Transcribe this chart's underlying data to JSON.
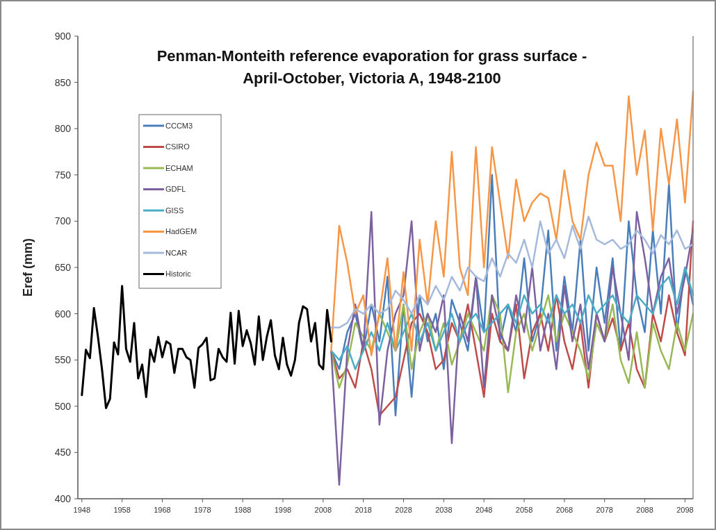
{
  "chart_data": {
    "type": "line",
    "title": "Penman-Monteith reference evaporation for grass surface -\nApril-October, Victoria A, 1948-2100",
    "ylabel": "Eref (mm)",
    "xlim": [
      1947,
      2100
    ],
    "xticks": [
      1948,
      1958,
      1968,
      1978,
      1988,
      1998,
      2008,
      2018,
      2028,
      2038,
      2048,
      2058,
      2068,
      2078,
      2088,
      2098
    ],
    "ylim": [
      400,
      900
    ],
    "yticks": [
      400,
      450,
      500,
      550,
      600,
      650,
      700,
      750,
      800,
      850,
      900
    ],
    "grid": false,
    "legend": "top left",
    "marker": "none",
    "line_style": "solid",
    "series": [
      {
        "name": "CCCM3",
        "color": "#4a7ebb",
        "x": [
          2010,
          2012,
          2014,
          2016,
          2018,
          2020,
          2022,
          2024,
          2026,
          2028,
          2030,
          2032,
          2034,
          2036,
          2038,
          2040,
          2042,
          2044,
          2046,
          2048,
          2050,
          2052,
          2054,
          2056,
          2058,
          2060,
          2062,
          2064,
          2066,
          2068,
          2070,
          2072,
          2074,
          2076,
          2078,
          2080,
          2082,
          2084,
          2086,
          2088,
          2090,
          2092,
          2094,
          2096,
          2098,
          2100
        ],
        "values": [
          560,
          540,
          580,
          600,
          560,
          610,
          570,
          640,
          490,
          610,
          510,
          620,
          570,
          600,
          540,
          615,
          590,
          560,
          640,
          580,
          750,
          570,
          610,
          580,
          660,
          570,
          600,
          690,
          560,
          640,
          580,
          680,
          560,
          650,
          590,
          660,
          560,
          700,
          620,
          580,
          690,
          600,
          740,
          580,
          650,
          610
        ]
      },
      {
        "name": "CSIRO",
        "color": "#be4b48",
        "x": [
          2010,
          2012,
          2014,
          2016,
          2018,
          2020,
          2022,
          2024,
          2026,
          2028,
          2030,
          2032,
          2034,
          2036,
          2038,
          2040,
          2042,
          2044,
          2046,
          2048,
          2050,
          2052,
          2054,
          2056,
          2058,
          2060,
          2062,
          2064,
          2066,
          2068,
          2070,
          2072,
          2074,
          2076,
          2078,
          2080,
          2082,
          2084,
          2086,
          2088,
          2090,
          2092,
          2094,
          2096,
          2098,
          2100
        ],
        "values": [
          560,
          530,
          540,
          520,
          570,
          540,
          490,
          500,
          510,
          550,
          590,
          600,
          580,
          540,
          550,
          590,
          570,
          610,
          560,
          510,
          600,
          570,
          560,
          610,
          530,
          580,
          600,
          560,
          620,
          570,
          540,
          590,
          520,
          600,
          570,
          595,
          560,
          590,
          540,
          520,
          600,
          570,
          620,
          580,
          555,
          700
        ]
      },
      {
        "name": "ECHAM",
        "color": "#98b954",
        "x": [
          2010,
          2012,
          2014,
          2016,
          2018,
          2020,
          2022,
          2024,
          2026,
          2028,
          2030,
          2032,
          2034,
          2036,
          2038,
          2040,
          2042,
          2044,
          2046,
          2048,
          2050,
          2052,
          2054,
          2056,
          2058,
          2060,
          2062,
          2064,
          2066,
          2068,
          2070,
          2072,
          2074,
          2076,
          2078,
          2080,
          2082,
          2084,
          2086,
          2088,
          2090,
          2092,
          2094,
          2096,
          2098,
          2100
        ],
        "values": [
          560,
          520,
          545,
          590,
          575,
          560,
          600,
          580,
          560,
          610,
          540,
          580,
          600,
          560,
          590,
          545,
          570,
          600,
          580,
          560,
          620,
          600,
          515,
          580,
          600,
          560,
          590,
          620,
          570,
          600,
          580,
          560,
          530,
          590,
          570,
          610,
          550,
          525,
          580,
          520,
          590,
          560,
          540,
          590,
          560,
          600
        ]
      },
      {
        "name": "GDFL",
        "color": "#7d60a0",
        "x": [
          2010,
          2012,
          2014,
          2016,
          2018,
          2020,
          2022,
          2024,
          2026,
          2028,
          2030,
          2032,
          2034,
          2036,
          2038,
          2040,
          2042,
          2044,
          2046,
          2048,
          2050,
          2052,
          2054,
          2056,
          2058,
          2060,
          2062,
          2064,
          2066,
          2068,
          2070,
          2072,
          2074,
          2076,
          2078,
          2080,
          2082,
          2084,
          2086,
          2088,
          2090,
          2092,
          2094,
          2096,
          2098,
          2100
        ],
        "values": [
          560,
          415,
          560,
          610,
          560,
          710,
          480,
          560,
          600,
          620,
          700,
          560,
          600,
          580,
          620,
          460,
          600,
          570,
          640,
          520,
          620,
          580,
          560,
          620,
          580,
          650,
          560,
          600,
          540,
          630,
          570,
          610,
          540,
          600,
          570,
          650,
          600,
          550,
          710,
          660,
          600,
          640,
          660,
          600,
          640,
          690
        ]
      },
      {
        "name": "GISS",
        "color": "#4bacc6",
        "x": [
          2010,
          2012,
          2014,
          2016,
          2018,
          2020,
          2022,
          2024,
          2026,
          2028,
          2030,
          2032,
          2034,
          2036,
          2038,
          2040,
          2042,
          2044,
          2046,
          2048,
          2050,
          2052,
          2054,
          2056,
          2058,
          2060,
          2062,
          2064,
          2066,
          2068,
          2070,
          2072,
          2074,
          2076,
          2078,
          2080,
          2082,
          2084,
          2086,
          2088,
          2090,
          2092,
          2094,
          2096,
          2098,
          2100
        ],
        "values": [
          560,
          550,
          565,
          540,
          560,
          580,
          560,
          590,
          560,
          580,
          600,
          570,
          590,
          560,
          580,
          600,
          570,
          590,
          600,
          580,
          590,
          600,
          610,
          590,
          620,
          600,
          610,
          590,
          620,
          600,
          610,
          590,
          620,
          600,
          610,
          620,
          600,
          590,
          620,
          610,
          600,
          630,
          640,
          610,
          650,
          620
        ]
      },
      {
        "name": "HadGEM",
        "color": "#f79646",
        "x": [
          2010,
          2012,
          2014,
          2016,
          2018,
          2020,
          2022,
          2024,
          2026,
          2028,
          2030,
          2032,
          2034,
          2036,
          2038,
          2040,
          2042,
          2044,
          2046,
          2048,
          2050,
          2052,
          2054,
          2056,
          2058,
          2060,
          2062,
          2064,
          2066,
          2068,
          2070,
          2072,
          2074,
          2076,
          2078,
          2080,
          2082,
          2084,
          2086,
          2088,
          2090,
          2092,
          2094,
          2096,
          2098,
          2100
        ],
        "values": [
          560,
          695,
          655,
          600,
          620,
          555,
          600,
          660,
          560,
          645,
          560,
          680,
          610,
          700,
          640,
          775,
          650,
          620,
          780,
          650,
          780,
          720,
          660,
          745,
          700,
          720,
          730,
          725,
          680,
          755,
          700,
          680,
          750,
          785,
          760,
          760,
          700,
          835,
          750,
          798,
          690,
          800,
          740,
          810,
          720,
          840
        ]
      },
      {
        "name": "NCAR",
        "color": "#a5b9dd",
        "x": [
          2010,
          2012,
          2014,
          2016,
          2018,
          2020,
          2022,
          2024,
          2026,
          2028,
          2030,
          2032,
          2034,
          2036,
          2038,
          2040,
          2042,
          2044,
          2046,
          2048,
          2050,
          2052,
          2054,
          2056,
          2058,
          2060,
          2062,
          2064,
          2066,
          2068,
          2070,
          2072,
          2074,
          2076,
          2078,
          2080,
          2082,
          2084,
          2086,
          2088,
          2090,
          2092,
          2094,
          2096,
          2098,
          2100
        ],
        "values": [
          585,
          585,
          590,
          605,
          600,
          610,
          600,
          605,
          625,
          615,
          600,
          620,
          610,
          630,
          615,
          640,
          625,
          650,
          640,
          635,
          660,
          640,
          665,
          655,
          680,
          650,
          700,
          665,
          680,
          660,
          695,
          670,
          705,
          680,
          675,
          680,
          670,
          675,
          690,
          680,
          665,
          685,
          675,
          690,
          670,
          675
        ]
      },
      {
        "name": "Historic",
        "color": "#000000",
        "x": [
          1948,
          1949,
          1950,
          1951,
          1952,
          1953,
          1954,
          1955,
          1956,
          1957,
          1958,
          1959,
          1960,
          1961,
          1962,
          1963,
          1964,
          1965,
          1966,
          1967,
          1968,
          1969,
          1970,
          1971,
          1972,
          1973,
          1974,
          1975,
          1976,
          1977,
          1978,
          1979,
          1980,
          1981,
          1982,
          1983,
          1984,
          1985,
          1986,
          1987,
          1988,
          1989,
          1990,
          1991,
          1992,
          1993,
          1994,
          1995,
          1996,
          1997,
          1998,
          1999,
          2000,
          2001,
          2002,
          2003,
          2004,
          2005,
          2006,
          2007,
          2008,
          2009,
          2010
        ],
        "values": [
          512,
          561,
          552,
          606,
          575,
          540,
          498,
          508,
          569,
          556,
          630,
          562,
          548,
          590,
          530,
          545,
          510,
          561,
          548,
          575,
          553,
          570,
          567,
          536,
          562,
          562,
          553,
          550,
          520,
          563,
          567,
          574,
          528,
          530,
          562,
          553,
          548,
          601,
          546,
          603,
          565,
          582,
          568,
          545,
          597,
          550,
          575,
          593,
          555,
          540,
          574,
          545,
          533,
          550,
          590,
          608,
          605,
          570,
          590,
          545,
          540,
          604,
          570
        ]
      }
    ]
  }
}
